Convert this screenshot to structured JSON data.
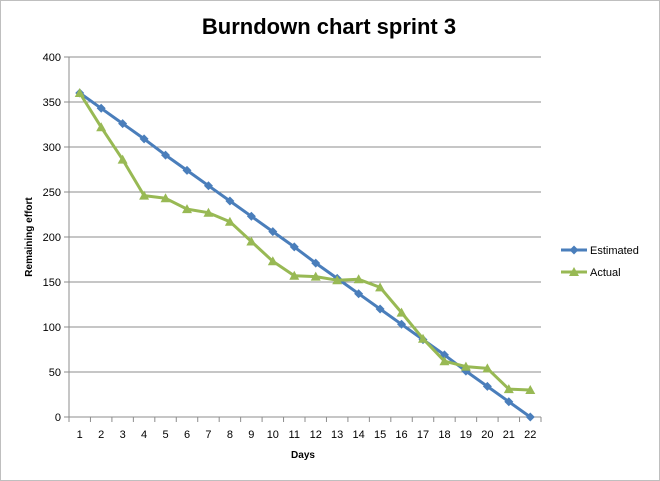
{
  "chart_data": {
    "type": "line",
    "title": "Burndown chart sprint 3",
    "xlabel": "Days",
    "ylabel": "Remaining effort",
    "x": [
      1,
      2,
      3,
      4,
      5,
      6,
      7,
      8,
      9,
      10,
      11,
      12,
      13,
      14,
      15,
      16,
      17,
      18,
      19,
      20,
      21,
      22
    ],
    "ylim": [
      0,
      400
    ],
    "yticks": [
      0,
      50,
      100,
      150,
      200,
      250,
      300,
      350,
      400
    ],
    "grid": "horizontal",
    "legend_position": "right",
    "series": [
      {
        "name": "Estimated",
        "color": "#4a7ebb",
        "marker": "diamond",
        "values": [
          360,
          343,
          326,
          309,
          291,
          274,
          257,
          240,
          223,
          206,
          189,
          171,
          154,
          137,
          120,
          103,
          86,
          69,
          51,
          34,
          17,
          0
        ]
      },
      {
        "name": "Actual",
        "color": "#98b954",
        "marker": "triangle",
        "values": [
          360,
          322,
          286,
          246,
          243,
          231,
          227,
          217,
          195,
          173,
          157,
          156,
          152,
          153,
          144,
          116,
          87,
          62,
          56,
          54,
          31,
          30
        ]
      }
    ]
  }
}
